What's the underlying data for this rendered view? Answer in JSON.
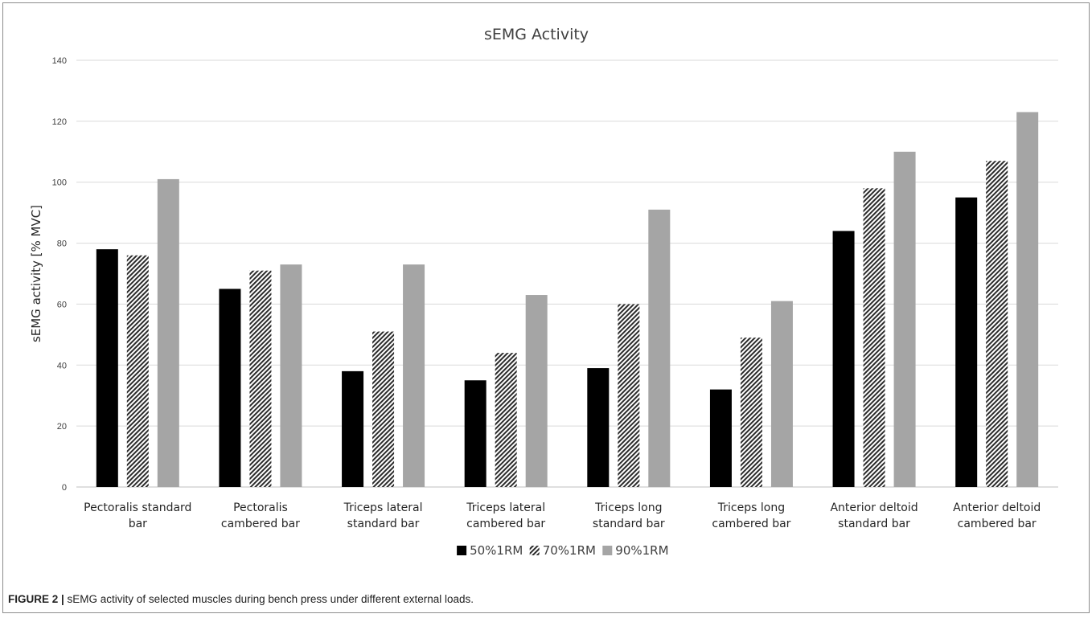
{
  "chart_data": {
    "type": "bar",
    "title": "sEMG Activity",
    "xlabel": "",
    "ylabel": "sEMG activity [% MVC]",
    "ylim": [
      0,
      140
    ],
    "yticks": [
      0,
      20,
      40,
      60,
      80,
      100,
      120,
      140
    ],
    "grid": true,
    "legend_position": "bottom",
    "categories": [
      [
        "Pectoralis standard",
        "bar"
      ],
      [
        "Pectoralis",
        "cambered bar"
      ],
      [
        "Triceps lateral",
        "standard bar"
      ],
      [
        "Triceps lateral",
        "cambered bar"
      ],
      [
        "Triceps long",
        "standard bar"
      ],
      [
        "Triceps long",
        "cambered bar"
      ],
      [
        "Anterior deltoid",
        "standard bar"
      ],
      [
        "Anterior deltoid",
        "cambered bar"
      ]
    ],
    "series": [
      {
        "name": "50%1RM",
        "color": "#000000",
        "pattern": "solid",
        "values": [
          78,
          65,
          38,
          35,
          39,
          32,
          84,
          95
        ]
      },
      {
        "name": "70%1RM",
        "color": "#2b2b2b",
        "pattern": "diagonal-hatch",
        "values": [
          76,
          71,
          51,
          44,
          60,
          49,
          98,
          107
        ]
      },
      {
        "name": "90%1RM",
        "color": "#a5a5a5",
        "pattern": "solid",
        "values": [
          101,
          73,
          73,
          63,
          91,
          61,
          110,
          123
        ]
      }
    ]
  },
  "caption": {
    "label": "FIGURE 2 |",
    "text": " sEMG activity of selected muscles during bench press under different external loads."
  }
}
